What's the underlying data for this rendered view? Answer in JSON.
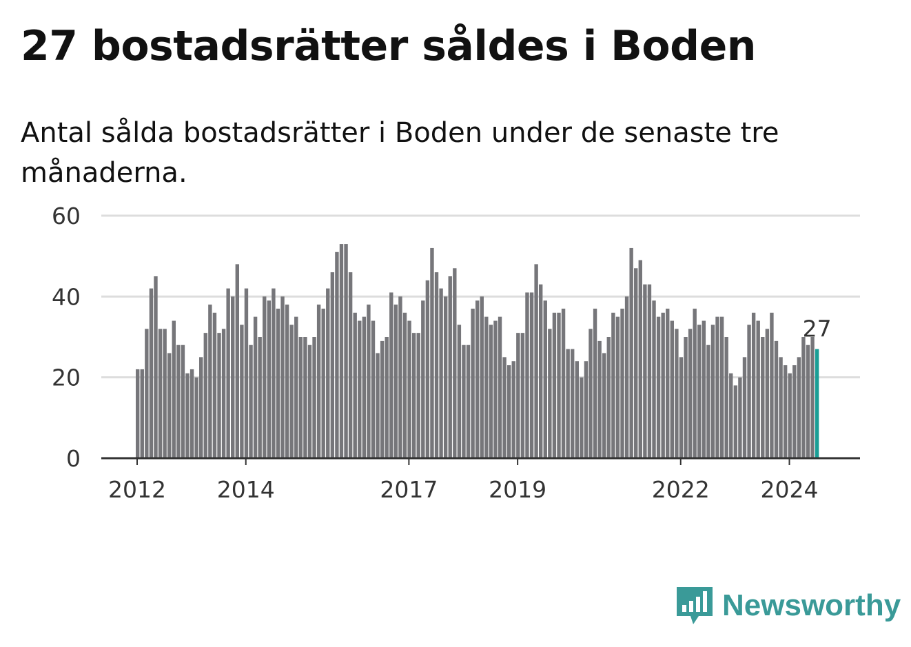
{
  "title": "27 bostadsrätter såldes i Boden",
  "subtitle": "Antal sålda bostadsrätter i Boden under de senaste tre månaderna.",
  "brand": {
    "name": "Newsworthy",
    "icon": "newsworthy-logo-icon",
    "color": "#3a9a98"
  },
  "colors": {
    "bar": "#76767a",
    "highlight": "#1a9e96",
    "grid": "#dddddd",
    "axis": "#333333"
  },
  "chart_data": {
    "type": "bar",
    "title": "27 bostadsrätter såldes i Boden",
    "xlabel": "",
    "ylabel": "",
    "ylim": [
      0,
      60
    ],
    "yticks": [
      0,
      20,
      40,
      60
    ],
    "xticks": [
      {
        "label": "2012",
        "index": 0
      },
      {
        "label": "2014",
        "index": 24
      },
      {
        "label": "2017",
        "index": 60
      },
      {
        "label": "2019",
        "index": 84
      },
      {
        "label": "2022",
        "index": 120
      },
      {
        "label": "2024",
        "index": 144
      }
    ],
    "first_period": "2012-01",
    "highlight_label": "27",
    "values": [
      22,
      22,
      32,
      42,
      45,
      32,
      32,
      26,
      34,
      28,
      28,
      21,
      22,
      20,
      25,
      31,
      38,
      36,
      31,
      32,
      42,
      40,
      48,
      33,
      42,
      28,
      35,
      30,
      40,
      39,
      42,
      37,
      40,
      38,
      33,
      35,
      30,
      30,
      28,
      30,
      38,
      37,
      42,
      46,
      51,
      53,
      53,
      46,
      36,
      34,
      35,
      38,
      34,
      26,
      29,
      30,
      41,
      38,
      40,
      36,
      34,
      31,
      31,
      39,
      44,
      52,
      46,
      42,
      40,
      45,
      47,
      33,
      28,
      28,
      37,
      39,
      40,
      35,
      33,
      34,
      35,
      25,
      23,
      24,
      31,
      31,
      41,
      41,
      48,
      43,
      39,
      32,
      36,
      36,
      37,
      27,
      27,
      24,
      20,
      24,
      32,
      37,
      29,
      26,
      30,
      36,
      35,
      37,
      40,
      52,
      47,
      49,
      43,
      43,
      39,
      35,
      36,
      37,
      34,
      32,
      25,
      30,
      32,
      37,
      33,
      34,
      28,
      33,
      35,
      35,
      30,
      21,
      18,
      20,
      25,
      33,
      36,
      34,
      30,
      32,
      36,
      29,
      25,
      23,
      21,
      23,
      25,
      30,
      28,
      30,
      27
    ]
  }
}
